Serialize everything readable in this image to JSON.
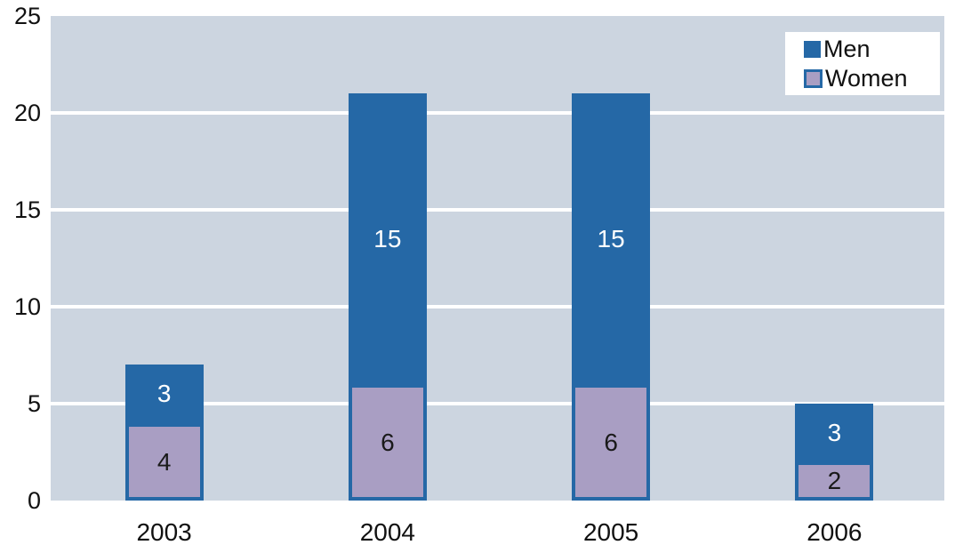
{
  "chart_data": {
    "type": "bar",
    "stacked": true,
    "title": "",
    "xlabel": "",
    "ylabel": "",
    "categories": [
      "2003",
      "2004",
      "2005",
      "2006"
    ],
    "series": [
      {
        "name": "Men",
        "color": "#2568a6",
        "values": [
          3,
          15,
          15,
          3
        ]
      },
      {
        "name": "Women",
        "color": "#a99ec3",
        "values": [
          4,
          6,
          6,
          2
        ]
      }
    ],
    "stack_order_bottom_to_top": [
      "Women",
      "Men"
    ],
    "totals": [
      7,
      21,
      21,
      5
    ],
    "yticks": [
      0,
      5,
      10,
      15,
      20,
      25
    ],
    "ylim": [
      0,
      25
    ],
    "grid": "horizontal",
    "gridline_color": "#ffffff",
    "plot_bg": "#ccd5e0",
    "bar_border_color": "#2568a6",
    "label_colors": {
      "Men": "#ffffff",
      "Women": "#1a1a1a"
    },
    "legend_position": "top-right",
    "legend_items": [
      "Men",
      "Women"
    ]
  }
}
